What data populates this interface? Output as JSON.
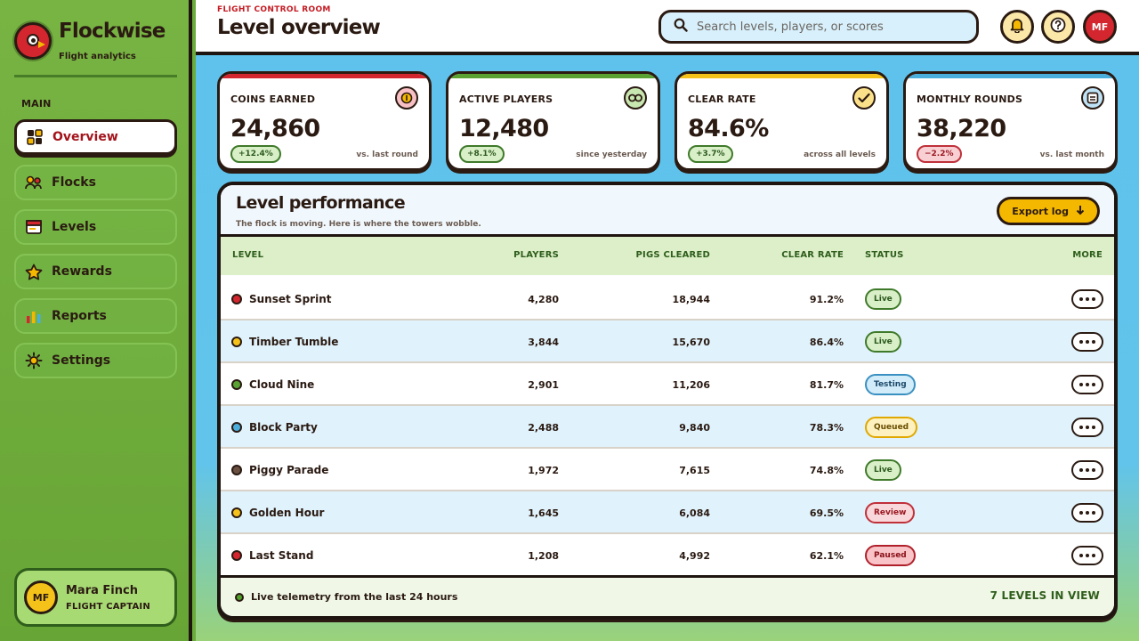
{
  "brand": {
    "name": "Flockwise",
    "subtitle": "Flight analytics"
  },
  "sidebar": {
    "section": "MAIN",
    "items": [
      {
        "label": "Overview",
        "icon": "grid-icon",
        "active": true
      },
      {
        "label": "Flocks",
        "icon": "users-icon"
      },
      {
        "label": "Levels",
        "icon": "card-icon"
      },
      {
        "label": "Rewards",
        "icon": "star-icon"
      },
      {
        "label": "Reports",
        "icon": "bar-chart-icon"
      },
      {
        "label": "Settings",
        "icon": "gear-icon"
      }
    ],
    "user": {
      "initials": "MF",
      "name": "Mara Finch",
      "role": "FLIGHT CAPTAIN"
    }
  },
  "header": {
    "eyebrow": "FLIGHT CONTROL ROOM",
    "title": "Level overview",
    "search_placeholder": "Search levels, players, or scores",
    "avatar_initials": "MF"
  },
  "stats": [
    {
      "label": "COINS EARNED",
      "value": "24,860",
      "delta": "+12.4%",
      "direction": "up",
      "note": "vs. last round",
      "accent": "#d4262e",
      "icon": "coin-icon",
      "icon_bg": "#f8c0c4"
    },
    {
      "label": "ACTIVE PLAYERS",
      "value": "12,480",
      "delta": "+8.1%",
      "direction": "up",
      "note": "since yesterday",
      "accent": "#5aa232",
      "icon": "link-icon",
      "icon_bg": "#c8e6b0"
    },
    {
      "label": "CLEAR RATE",
      "value": "84.6%",
      "delta": "+3.7%",
      "direction": "up",
      "note": "across all levels",
      "accent": "#f5c21a",
      "icon": "check-icon",
      "icon_bg": "#fbe08a"
    },
    {
      "label": "MONTHLY ROUNDS",
      "value": "38,220",
      "delta": "−2.2%",
      "direction": "down",
      "note": "vs. last month",
      "accent": "#4aaedc",
      "icon": "calendar-icon",
      "icon_bg": "#bfe3f6"
    }
  ],
  "table": {
    "title": "Level performance",
    "subtitle": "The flock is moving. Here is where the towers wobble.",
    "export_label": "Export log",
    "columns": {
      "level": "LEVEL",
      "players": "PLAYERS",
      "pigs": "PIGS CLEARED",
      "rate": "CLEAR RATE",
      "status": "STATUS",
      "more": "MORE"
    },
    "rows": [
      {
        "name": "Sunset Sprint",
        "dot": "#d4262e",
        "players": "4,280",
        "pigs": "18,944",
        "rate": "91.2%",
        "status": "Live",
        "kind": "live"
      },
      {
        "name": "Timber Tumble",
        "dot": "#f5c21a",
        "players": "3,844",
        "pigs": "15,670",
        "rate": "86.4%",
        "status": "Live",
        "kind": "live"
      },
      {
        "name": "Cloud Nine",
        "dot": "#5aa232",
        "players": "2,901",
        "pigs": "11,206",
        "rate": "81.7%",
        "status": "Testing",
        "kind": "testing"
      },
      {
        "name": "Block Party",
        "dot": "#4aaedc",
        "players": "2,488",
        "pigs": "9,840",
        "rate": "78.3%",
        "status": "Queued",
        "kind": "queued"
      },
      {
        "name": "Piggy Parade",
        "dot": "#6a5040",
        "players": "1,972",
        "pigs": "7,615",
        "rate": "74.8%",
        "status": "Live",
        "kind": "live"
      },
      {
        "name": "Golden Hour",
        "dot": "#f5c21a",
        "players": "1,645",
        "pigs": "6,084",
        "rate": "69.5%",
        "status": "Review",
        "kind": "review"
      },
      {
        "name": "Last Stand",
        "dot": "#d4262e",
        "players": "1,208",
        "pigs": "4,992",
        "rate": "62.1%",
        "status": "Paused",
        "kind": "paused"
      }
    ],
    "footer_text": "Live telemetry from the last 24 hours",
    "footer_count": "7 LEVELS IN VIEW"
  }
}
